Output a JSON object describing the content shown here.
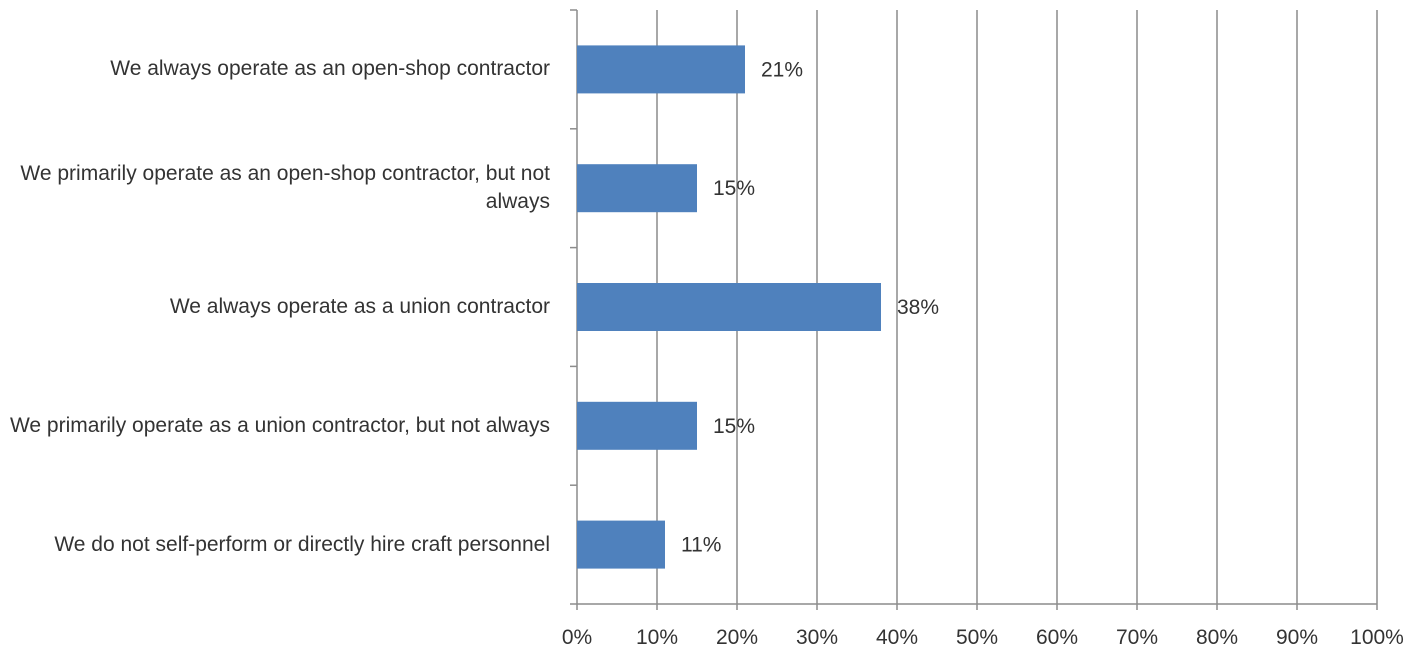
{
  "chart_data": {
    "type": "bar",
    "orientation": "horizontal",
    "categories": [
      "We always operate as an open-shop contractor",
      "We primarily operate as an open-shop contractor, but not always",
      "We always operate as a union contractor",
      "We primarily operate as a union contractor, but not always",
      "We do not self-perform or directly hire craft personnel"
    ],
    "series": [
      {
        "values": [
          21,
          15,
          38,
          15,
          11
        ]
      }
    ],
    "data_labels": [
      "21%",
      "15%",
      "38%",
      "15%",
      "11%"
    ],
    "x_ticks": [
      "0%",
      "10%",
      "20%",
      "30%",
      "40%",
      "50%",
      "60%",
      "70%",
      "80%",
      "90%",
      "100%"
    ],
    "xlim": [
      0,
      100
    ],
    "title": "",
    "xlabel": "",
    "ylabel": "",
    "grid": "vertical",
    "legend": "none",
    "colors": {
      "bar": "#4f81bd",
      "grid": "#8c8c8c",
      "axis": "#8c8c8c",
      "text": "#333333"
    }
  }
}
